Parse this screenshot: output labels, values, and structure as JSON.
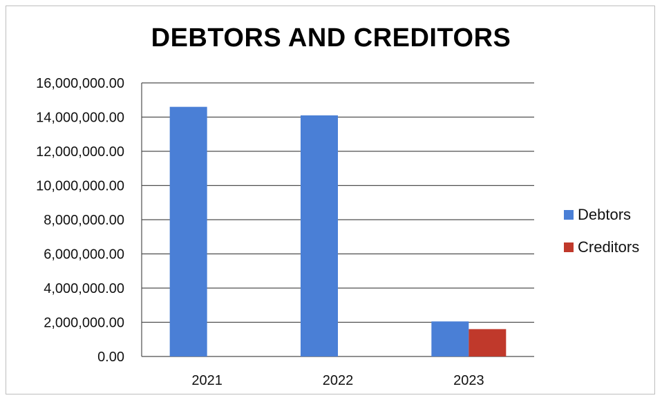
{
  "chart_data": {
    "type": "bar",
    "title": "DEBTORS AND CREDITORS",
    "categories": [
      "2021",
      "2022",
      "2023"
    ],
    "series": [
      {
        "name": "Debtors",
        "color": "#4a7fd6",
        "values": [
          14600000,
          14100000,
          2050000
        ]
      },
      {
        "name": "Creditors",
        "color": "#c0392b",
        "values": [
          null,
          null,
          1600000
        ]
      }
    ],
    "yticks": [
      "0.00",
      "2,000,000.00",
      "4,000,000.00",
      "6,000,000.00",
      "8,000,000.00",
      "10,000,000.00",
      "12,000,000.00",
      "14,000,000.00",
      "16,000,000.00"
    ],
    "ylim": [
      0,
      16000000
    ],
    "grid": true,
    "legend_position": "right"
  }
}
